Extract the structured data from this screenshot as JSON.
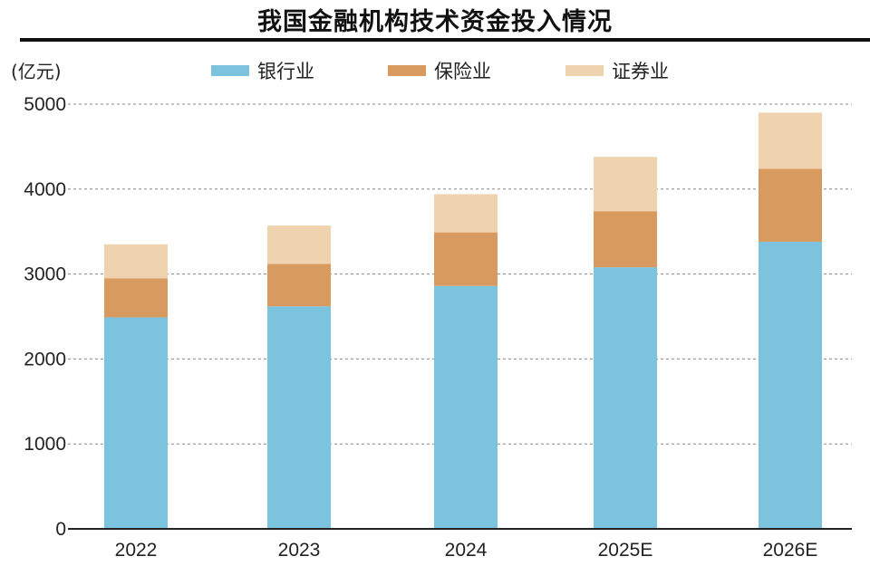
{
  "chart_data": {
    "type": "bar",
    "stacked": true,
    "title": "我国金融机构技术资金投入情况",
    "unit_label": "(亿元)",
    "categories": [
      "2022",
      "2023",
      "2024",
      "2025E",
      "2026E"
    ],
    "series": [
      {
        "name": "银行业",
        "color": "#7cc3dd",
        "values": [
          2490,
          2620,
          2860,
          3080,
          3380
        ]
      },
      {
        "name": "保险业",
        "color": "#d99a5f",
        "values": [
          460,
          500,
          630,
          660,
          860
        ]
      },
      {
        "name": "证券业",
        "color": "#efd3ae",
        "values": [
          400,
          450,
          450,
          640,
          660
        ]
      }
    ],
    "yticks": [
      0,
      1000,
      2000,
      3000,
      4000,
      5000
    ],
    "ylim": [
      0,
      5000
    ],
    "grid": true,
    "legend": "top"
  }
}
